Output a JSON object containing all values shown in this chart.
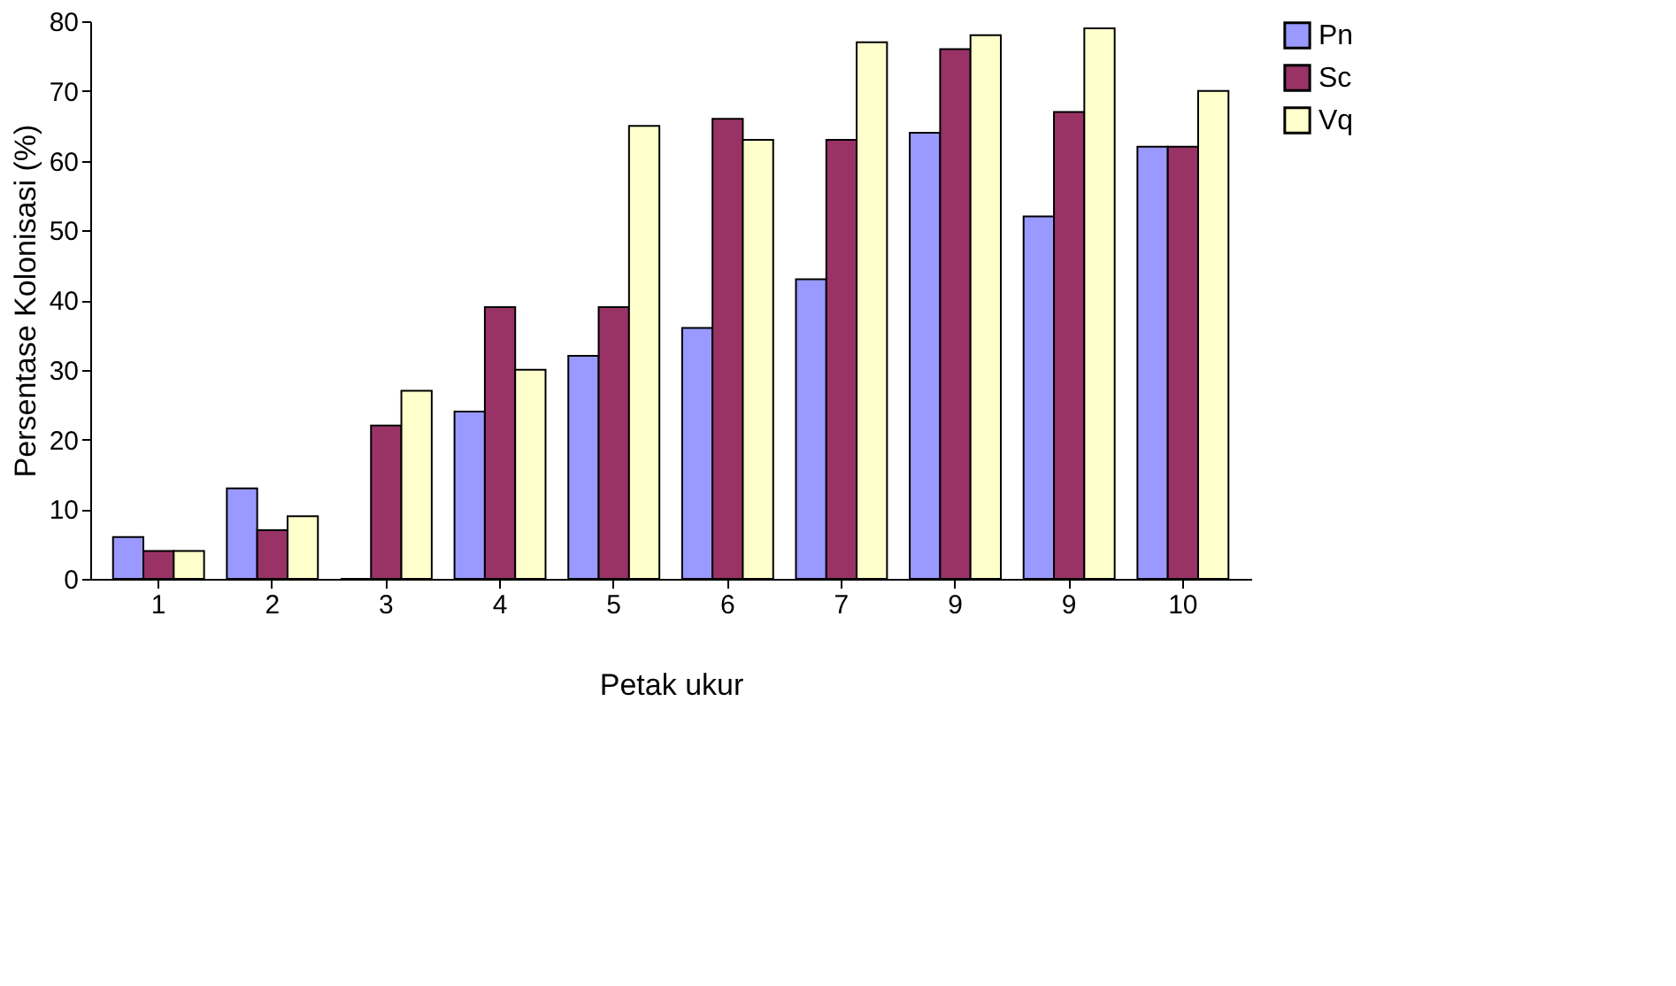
{
  "chart_data": {
    "type": "bar",
    "xlabel": "Petak ukur",
    "ylabel": "Persentase Kolonisasi (%)",
    "categories": [
      "1",
      "2",
      "3",
      "4",
      "5",
      "6",
      "7",
      "9",
      "9",
      "10"
    ],
    "series": [
      {
        "name": "Pn",
        "color": "#9999ff",
        "values": [
          6,
          13,
          0,
          24,
          32,
          36,
          43,
          64,
          52,
          62
        ]
      },
      {
        "name": "Sc",
        "color": "#993366",
        "values": [
          4,
          7,
          22,
          39,
          39,
          66,
          63,
          76,
          67,
          62
        ]
      },
      {
        "name": "Vq",
        "color": "#ffffcc",
        "values": [
          4,
          9,
          27,
          30,
          65,
          63,
          77,
          78,
          79,
          70
        ]
      }
    ],
    "ylim": [
      0,
      80
    ],
    "yticks": [
      0,
      10,
      20,
      30,
      40,
      50,
      60,
      70,
      80
    ],
    "grid": false,
    "legend": "right"
  }
}
